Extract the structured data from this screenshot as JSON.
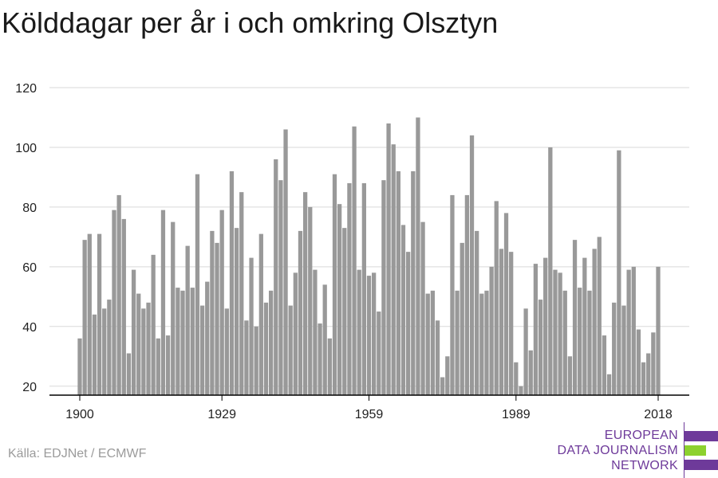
{
  "title": "Kölddagar per år i och omkring Olsztyn",
  "source": "Källa: EDJNet / ECMWF",
  "logo": {
    "lines": [
      "EUROPEAN",
      "DATA JOURNALISM",
      "NETWORK"
    ],
    "colors": {
      "text": "#6e3a9a",
      "accent": "#8dd12e"
    }
  },
  "colors": {
    "bar": "#999999",
    "grid": "#d9d9d9",
    "axis": "#000000",
    "tick_label": "#222222"
  },
  "chart_data": {
    "type": "bar",
    "title": "Kölddagar per år i och omkring Olsztyn",
    "xlabel": "",
    "ylabel": "",
    "xlim": [
      1900,
      2018
    ],
    "ylim": [
      17,
      120
    ],
    "yticks": [
      20,
      40,
      60,
      80,
      100,
      120
    ],
    "xticks": [
      1900,
      1929,
      1959,
      1989,
      2018
    ],
    "grid": true,
    "x": [
      1900,
      1901,
      1902,
      1903,
      1904,
      1905,
      1906,
      1907,
      1908,
      1909,
      1910,
      1911,
      1912,
      1913,
      1914,
      1915,
      1916,
      1917,
      1918,
      1919,
      1920,
      1921,
      1922,
      1923,
      1924,
      1925,
      1926,
      1927,
      1928,
      1929,
      1930,
      1931,
      1932,
      1933,
      1934,
      1935,
      1936,
      1937,
      1938,
      1939,
      1940,
      1941,
      1942,
      1943,
      1944,
      1945,
      1946,
      1947,
      1948,
      1949,
      1950,
      1951,
      1952,
      1953,
      1954,
      1955,
      1956,
      1957,
      1958,
      1959,
      1960,
      1961,
      1962,
      1963,
      1964,
      1965,
      1966,
      1967,
      1968,
      1969,
      1970,
      1971,
      1972,
      1973,
      1974,
      1975,
      1976,
      1977,
      1978,
      1979,
      1980,
      1981,
      1982,
      1983,
      1984,
      1985,
      1986,
      1987,
      1988,
      1989,
      1990,
      1991,
      1992,
      1993,
      1994,
      1995,
      1996,
      1997,
      1998,
      1999,
      2000,
      2001,
      2002,
      2003,
      2004,
      2005,
      2006,
      2007,
      2008,
      2009,
      2010,
      2011,
      2012,
      2013,
      2014,
      2015,
      2016,
      2017,
      2018
    ],
    "values": [
      36,
      69,
      71,
      44,
      71,
      46,
      49,
      79,
      84,
      76,
      31,
      59,
      51,
      46,
      48,
      64,
      36,
      79,
      37,
      75,
      53,
      52,
      67,
      53,
      91,
      47,
      55,
      72,
      68,
      79,
      46,
      92,
      73,
      85,
      42,
      63,
      40,
      71,
      48,
      52,
      96,
      89,
      106,
      47,
      58,
      72,
      85,
      80,
      59,
      41,
      54,
      36,
      91,
      81,
      73,
      88,
      107,
      59,
      88,
      57,
      58,
      45,
      89,
      108,
      101,
      92,
      74,
      65,
      92,
      110,
      75,
      51,
      52,
      42,
      23,
      30,
      84,
      52,
      68,
      84,
      104,
      72,
      51,
      52,
      60,
      82,
      66,
      78,
      65,
      28,
      20,
      46,
      32,
      61,
      49,
      63,
      100,
      59,
      58,
      52,
      30,
      69,
      53,
      63,
      52,
      66,
      70,
      37,
      24,
      48,
      99,
      47,
      59,
      60,
      39,
      28,
      31,
      38,
      60
    ]
  }
}
